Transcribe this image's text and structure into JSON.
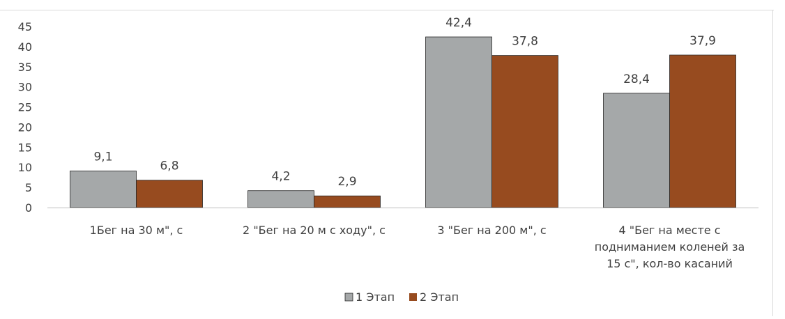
{
  "chart_data": {
    "type": "bar",
    "categories": [
      [
        "1Бег на 30 м\", с"
      ],
      [
        "2 \"Бег на 20 м с ходу\", с"
      ],
      [
        "3 \"Бег на 200 м\", с"
      ],
      [
        "4 \"Бег на месте с",
        "подниманием коленей за",
        "15 с\", кол-во касаний"
      ]
    ],
    "series": [
      {
        "name": "1 Этап",
        "color": "#a5a8a9",
        "values": [
          9.1,
          4.2,
          42.4,
          28.4
        ],
        "labels": [
          "9,1",
          "4,2",
          "42,4",
          "28,4"
        ]
      },
      {
        "name": "2 Этап",
        "color": "#974b1f",
        "values": [
          6.8,
          2.9,
          37.8,
          37.9
        ],
        "labels": [
          "6,8",
          "2,9",
          "37,8",
          "37,9"
        ]
      }
    ],
    "ylim": [
      0,
      45
    ],
    "yticks": [
      0,
      5,
      10,
      15,
      20,
      25,
      30,
      35,
      40,
      45
    ],
    "grid": false,
    "legend_position": "bottom"
  }
}
